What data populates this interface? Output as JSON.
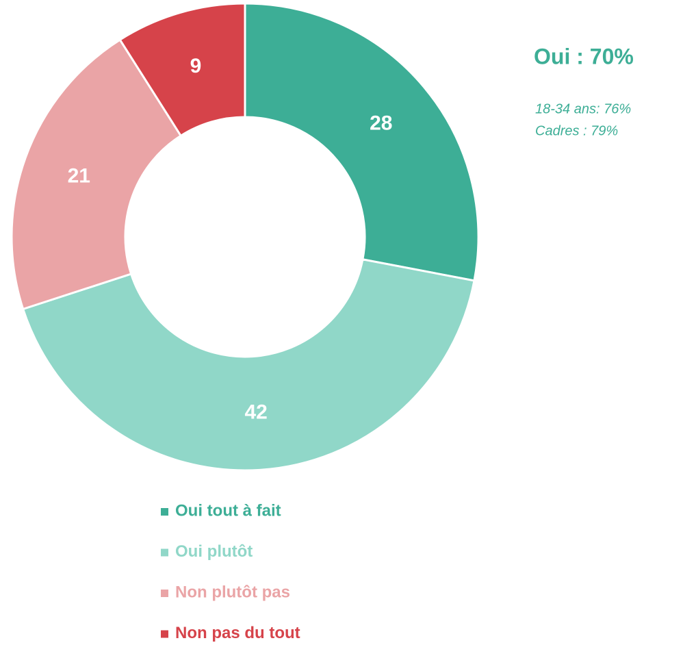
{
  "chart_data": {
    "type": "donut",
    "categories": [
      "Oui tout à fait",
      "Oui plutôt",
      "Non plutôt pas",
      "Non pas du tout"
    ],
    "values": [
      28,
      42,
      21,
      9
    ],
    "colors": [
      "#3dae96",
      "#90d7c8",
      "#eaa4a6",
      "#d6434a"
    ],
    "annotations": [
      "Oui : 70%",
      "18-34 ans: 76%",
      "Cadres : 79%"
    ],
    "legend": "bottom"
  }
}
